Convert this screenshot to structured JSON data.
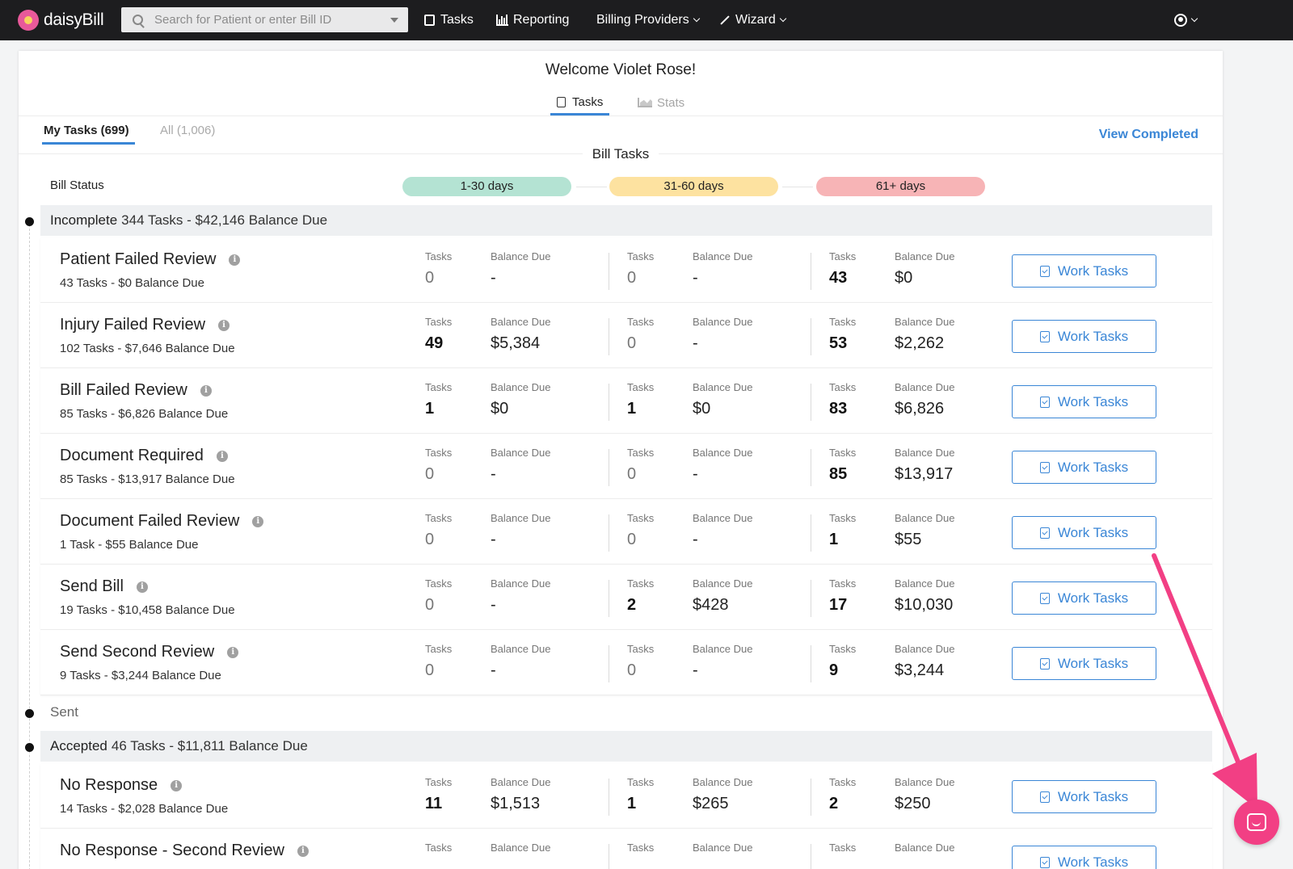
{
  "nav": {
    "brand": "daisyBill",
    "search_placeholder": "Search for Patient or enter Bill ID",
    "items": [
      {
        "label": "Tasks"
      },
      {
        "label": "Reporting"
      },
      {
        "label": "Billing Providers"
      },
      {
        "label": "Wizard"
      }
    ]
  },
  "page": {
    "welcome": "Welcome Violet Rose!",
    "tabs": [
      {
        "label": "Tasks"
      },
      {
        "label": "Stats"
      }
    ],
    "subtabs": [
      {
        "label": "My Tasks (699)"
      },
      {
        "label": "All (1,006)"
      }
    ],
    "view_completed": "View Completed",
    "bill_tasks": "Bill Tasks",
    "bill_status": "Bill Status",
    "ranges": [
      "1-30 days",
      "31-60 days",
      "61+ days"
    ]
  },
  "labels": {
    "tasks": "Tasks",
    "balance_due": "Balance Due",
    "work_tasks": "Work Tasks",
    "info": "i"
  },
  "sections": {
    "incomplete": {
      "name": "Incomplete",
      "summary": "344 Tasks - $42,146 Balance Due"
    },
    "sent": {
      "name": "Sent"
    },
    "accepted": {
      "name": "Accepted",
      "summary": "46 Tasks - $11,811 Balance Due"
    }
  },
  "rows": [
    {
      "title": "Patient Failed Review",
      "sub": "43 Tasks - $0 Balance Due",
      "c": [
        [
          "0",
          "-"
        ],
        [
          "0",
          "-"
        ],
        [
          "43",
          "$0"
        ]
      ]
    },
    {
      "title": "Injury Failed Review",
      "sub": "102 Tasks - $7,646 Balance Due",
      "c": [
        [
          "49",
          "$5,384"
        ],
        [
          "0",
          "-"
        ],
        [
          "53",
          "$2,262"
        ]
      ]
    },
    {
      "title": "Bill Failed Review",
      "sub": "85 Tasks - $6,826 Balance Due",
      "c": [
        [
          "1",
          "$0"
        ],
        [
          "1",
          "$0"
        ],
        [
          "83",
          "$6,826"
        ]
      ]
    },
    {
      "title": "Document Required",
      "sub": "85 Tasks - $13,917 Balance Due",
      "c": [
        [
          "0",
          "-"
        ],
        [
          "0",
          "-"
        ],
        [
          "85",
          "$13,917"
        ]
      ]
    },
    {
      "title": "Document Failed Review",
      "sub": "1 Task - $55 Balance Due",
      "c": [
        [
          "0",
          "-"
        ],
        [
          "0",
          "-"
        ],
        [
          "1",
          "$55"
        ]
      ]
    },
    {
      "title": "Send Bill",
      "sub": "19 Tasks - $10,458 Balance Due",
      "c": [
        [
          "0",
          "-"
        ],
        [
          "2",
          "$428"
        ],
        [
          "17",
          "$10,030"
        ]
      ]
    },
    {
      "title": "Send Second Review",
      "sub": "9 Tasks - $3,244 Balance Due",
      "c": [
        [
          "0",
          "-"
        ],
        [
          "0",
          "-"
        ],
        [
          "9",
          "$3,244"
        ]
      ]
    },
    {
      "title": "No Response",
      "sub": "14 Tasks - $2,028 Balance Due",
      "c": [
        [
          "11",
          "$1,513"
        ],
        [
          "1",
          "$265"
        ],
        [
          "2",
          "$250"
        ]
      ]
    },
    {
      "title": "No Response - Second Review",
      "sub": "",
      "c": [
        [
          "",
          ""
        ],
        [
          "",
          ""
        ],
        [
          "",
          ""
        ]
      ]
    }
  ],
  "colors": {
    "accent": "#3a86d6",
    "chat": "#f23f84",
    "green": "#b4e3d3",
    "yellow": "#fde2a0",
    "red": "#f7b4b6"
  }
}
